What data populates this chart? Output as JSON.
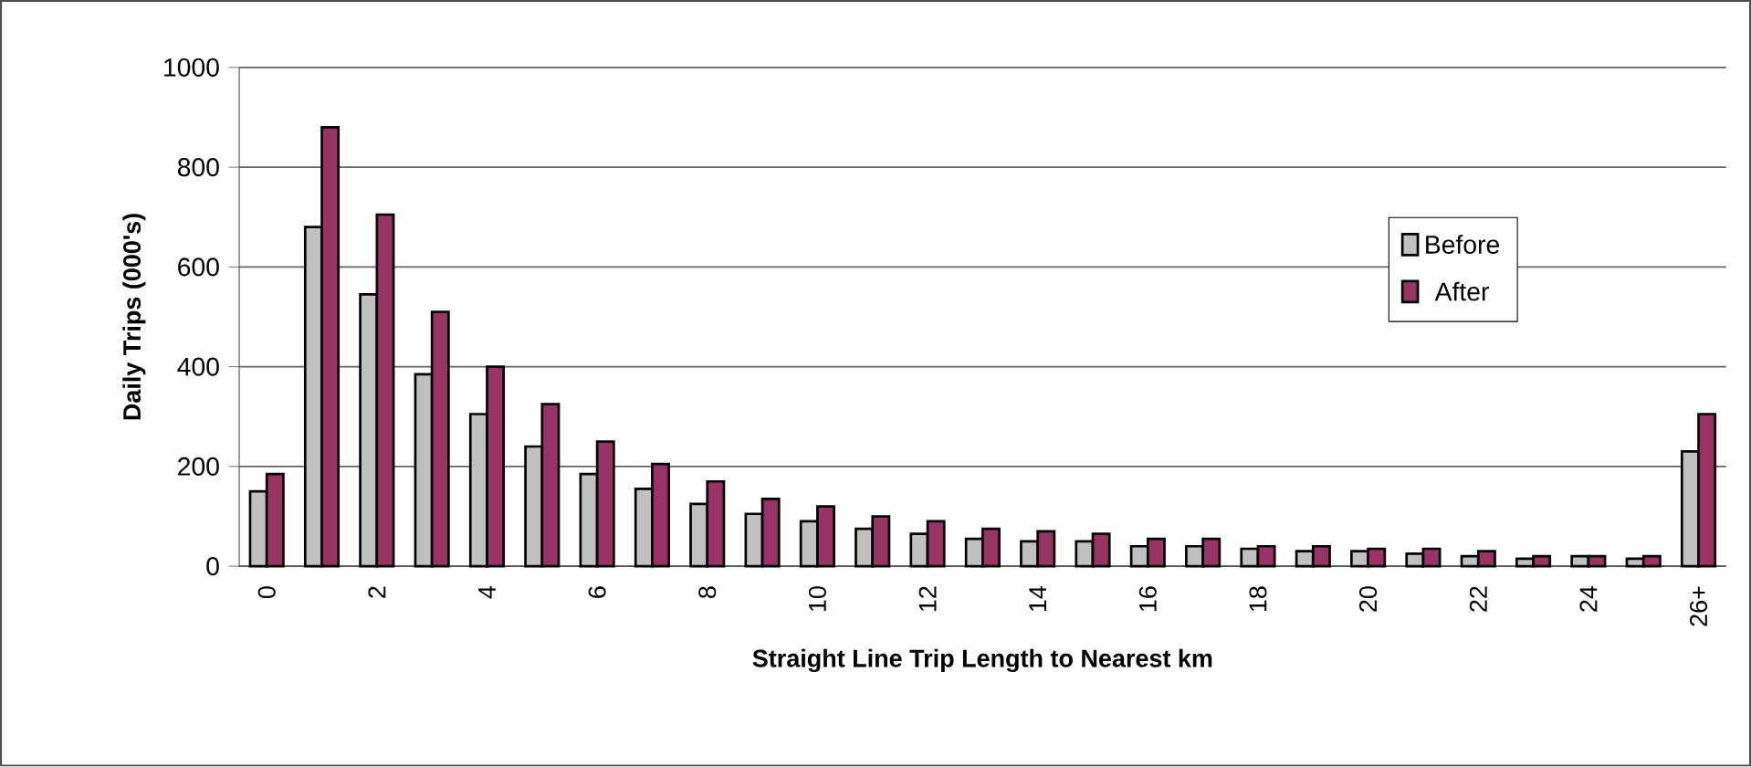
{
  "chart_data": {
    "type": "bar",
    "xlabel": "Straight Line Trip Length to Nearest km",
    "ylabel": "Daily Trips (000's)",
    "categories": [
      "0",
      null,
      "2",
      null,
      "4",
      null,
      "6",
      null,
      "8",
      null,
      "10",
      null,
      "12",
      null,
      "14",
      null,
      "16",
      null,
      "18",
      null,
      "20",
      null,
      "22",
      null,
      "24",
      null,
      "26+"
    ],
    "series": [
      {
        "name": "Before",
        "color": "#c0c0c0",
        "values": [
          150,
          680,
          545,
          385,
          305,
          240,
          185,
          155,
          125,
          105,
          90,
          75,
          65,
          55,
          50,
          50,
          40,
          40,
          35,
          30,
          30,
          25,
          20,
          15,
          20,
          15,
          230
        ]
      },
      {
        "name": "After",
        "color": "#993366",
        "values": [
          185,
          880,
          705,
          510,
          400,
          325,
          250,
          205,
          170,
          135,
          120,
          100,
          90,
          75,
          70,
          65,
          55,
          55,
          40,
          40,
          35,
          35,
          30,
          20,
          20,
          20,
          305
        ]
      }
    ],
    "ylim": [
      0,
      1000
    ],
    "yticks": [
      0,
      200,
      400,
      600,
      800,
      1000
    ],
    "grid": "y",
    "legend": "top right"
  }
}
